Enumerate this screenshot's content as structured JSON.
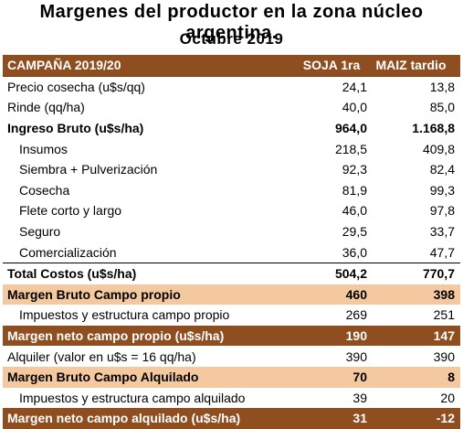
{
  "title": "Margenes del productor en la zona núcleo argentina.",
  "subtitle": "Octubre 2019",
  "header": {
    "label": "CAMPAÑA 2019/20",
    "col1": "SOJA 1ra",
    "col2": "MAIZ tardio"
  },
  "rows": [
    {
      "label": "Precio cosecha (u$s/qq)",
      "col1": "24,1",
      "col2": "13,8"
    },
    {
      "label": "Rinde (qq/ha)",
      "col1": "40,0",
      "col2": "85,0"
    },
    {
      "label": "Ingreso Bruto (u$s/ha)",
      "col1": "964,0",
      "col2": "1.168,8"
    },
    {
      "label": "Insumos",
      "col1": "218,5",
      "col2": "409,8"
    },
    {
      "label": "Siembra + Pulverización",
      "col1": "92,3",
      "col2": "82,4"
    },
    {
      "label": "Cosecha",
      "col1": "81,9",
      "col2": "99,3"
    },
    {
      "label": "Flete corto y largo",
      "col1": "46,0",
      "col2": "97,8"
    },
    {
      "label": "Seguro",
      "col1": "29,5",
      "col2": "33,7"
    },
    {
      "label": "Comercialización",
      "col1": "36,0",
      "col2": "47,7"
    },
    {
      "label": "Total Costos (u$s/ha)",
      "col1": "504,2",
      "col2": "770,7"
    },
    {
      "label": "Margen Bruto Campo propio",
      "col1": "460",
      "col2": "398"
    },
    {
      "label": "Impuestos y estructura campo propio",
      "col1": "269",
      "col2": "251"
    },
    {
      "label": "Margen neto campo propio (u$s/ha)",
      "col1": "190",
      "col2": "147"
    },
    {
      "label": "Alquiler (valor en u$s = 16 qq/ha)",
      "col1": "390",
      "col2": "390"
    },
    {
      "label": "Margen Bruto Campo Alquilado",
      "col1": "70",
      "col2": "8"
    },
    {
      "label": "Impuestos  y estructura campo alquilado",
      "col1": "39",
      "col2": "20"
    },
    {
      "label": "Margen neto campo alquilado (u$s/ha)",
      "col1": "31",
      "col2": "-12"
    }
  ],
  "colors": {
    "header_brown": "#8f4e1f",
    "highlight_orange": "#f5c9a0"
  }
}
